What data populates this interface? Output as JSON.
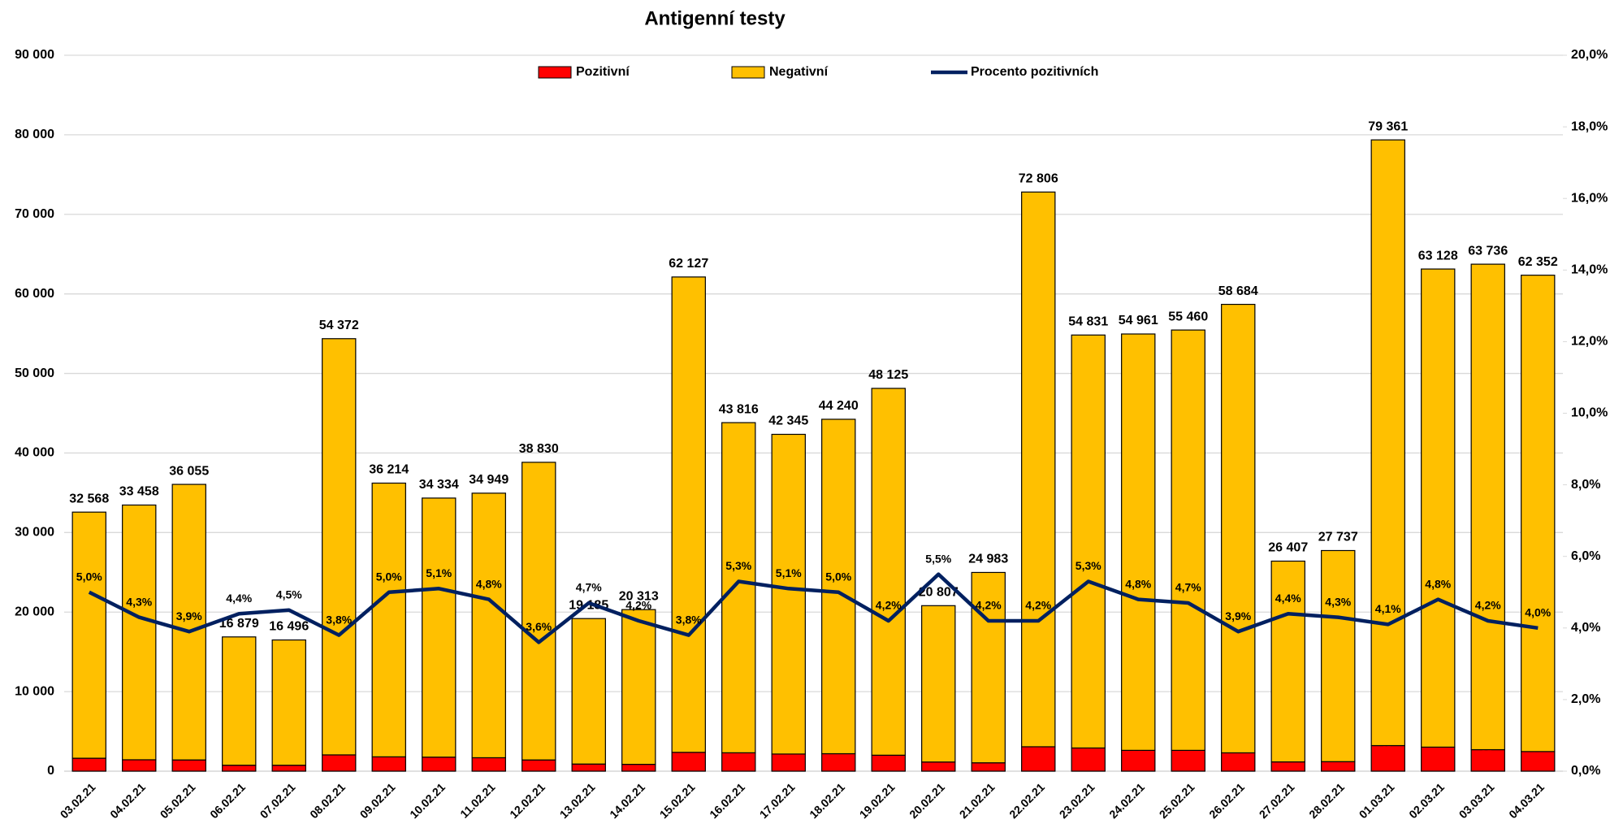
{
  "chart_data": {
    "type": "bar",
    "stacked": true,
    "title": "Antigenní testy",
    "categories": [
      "03.02.21",
      "04.02.21",
      "05.02.21",
      "06.02.21",
      "07.02.21",
      "08.02.21",
      "09.02.21",
      "10.02.21",
      "11.02.21",
      "12.02.21",
      "13.02.21",
      "14.02.21",
      "15.02.21",
      "16.02.21",
      "17.02.21",
      "18.02.21",
      "19.02.21",
      "20.02.21",
      "21.02.21",
      "22.02.21",
      "23.02.21",
      "24.02.21",
      "25.02.21",
      "26.02.21",
      "27.02.21",
      "28.02.21",
      "01.03.21",
      "02.03.21",
      "03.03.21",
      "04.03.21"
    ],
    "series": [
      {
        "name": "Pozitivní",
        "color": "#ff0000",
        "label_color": "#ff0000",
        "values": [
          1627,
          1434,
          1413,
          749,
          746,
          2048,
          1802,
          1764,
          1691,
          1412,
          898,
          860,
          2368,
          2311,
          2155,
          2197,
          2009,
          1153,
          1053,
          3070,
          2916,
          2619,
          2618,
          2305,
          1167,
          1196,
          3216,
          3023,
          2703,
          2465
        ],
        "value_labels": [
          "1 627",
          "1 434",
          "1 413",
          "749",
          "746",
          "2 048",
          "1 802",
          "1 764",
          "1 691",
          "1 412",
          "898",
          "860",
          "2 368",
          "2 311",
          "2 155",
          "2 197",
          "2 009",
          "1 153",
          "1 053",
          "3 070",
          "2 916",
          "2 619",
          "2 618",
          "2 305",
          "1 167",
          "1 196",
          "3 216",
          "3 023",
          "2 703",
          "2 465"
        ]
      },
      {
        "name": "Negativní",
        "color": "#ffc000",
        "values": [
          30941,
          32024,
          34642,
          16130,
          15750,
          52324,
          34412,
          32570,
          33258,
          37418,
          18287,
          19453,
          59759,
          41505,
          40190,
          42043,
          46116,
          19654,
          23930,
          69736,
          51915,
          52342,
          52842,
          56379,
          25240,
          26541,
          76145,
          60105,
          61033,
          59887
        ]
      },
      {
        "name": "Procento pozitivních",
        "type": "line",
        "axis": "y2",
        "color": "#002060",
        "values": [
          5.0,
          4.3,
          3.9,
          4.4,
          4.5,
          3.8,
          5.0,
          5.1,
          4.8,
          3.6,
          4.7,
          4.2,
          3.8,
          5.3,
          5.1,
          5.0,
          4.2,
          5.5,
          4.2,
          4.2,
          5.3,
          4.8,
          4.7,
          3.9,
          4.4,
          4.3,
          4.1,
          4.8,
          4.2,
          4.0
        ],
        "value_labels": [
          "5,0%",
          "4,3%",
          "3,9%",
          "4,4%",
          "4,5%",
          "3,8%",
          "5,0%",
          "5,1%",
          "4,8%",
          "3,6%",
          "4,7%",
          "4,2%",
          "3,8%",
          "5,3%",
          "5,1%",
          "5,0%",
          "4,2%",
          "5,5%",
          "4,2%",
          "4,2%",
          "5,3%",
          "4,8%",
          "4,7%",
          "3,9%",
          "4,4%",
          "4,3%",
          "4,1%",
          "4,8%",
          "4,2%",
          "4,0%"
        ]
      }
    ],
    "total_labels": [
      "32 568",
      "33 458",
      "36 055",
      "16 879",
      "16 496",
      "54 372",
      "36 214",
      "34 334",
      "34 949",
      "38 830",
      "19 185",
      "20 313",
      "62 127",
      "43 816",
      "42 345",
      "44 240",
      "48 125",
      "20 807",
      "24 983",
      "72 806",
      "54 831",
      "54 961",
      "55 460",
      "58 684",
      "26 407",
      "27 737",
      "79 361",
      "63 128",
      "63 736",
      "62 352"
    ],
    "ylim": [
      0,
      90000
    ],
    "yticks": [
      {
        "value": 0,
        "label": "0"
      },
      {
        "value": 10000,
        "label": "10 000"
      },
      {
        "value": 20000,
        "label": "20 000"
      },
      {
        "value": 30000,
        "label": "30 000"
      },
      {
        "value": 40000,
        "label": "40 000"
      },
      {
        "value": 50000,
        "label": "50 000"
      },
      {
        "value": 60000,
        "label": "60 000"
      },
      {
        "value": 70000,
        "label": "70 000"
      },
      {
        "value": 80000,
        "label": "80 000"
      },
      {
        "value": 90000,
        "label": "90 000"
      }
    ],
    "y2lim": [
      0,
      20
    ],
    "y2ticks": [
      {
        "value": 0,
        "label": "0,0%"
      },
      {
        "value": 2,
        "label": "2,0%"
      },
      {
        "value": 4,
        "label": "4,0%"
      },
      {
        "value": 6,
        "label": "6,0%"
      },
      {
        "value": 8,
        "label": "8,0%"
      },
      {
        "value": 10,
        "label": "10,0%"
      },
      {
        "value": 12,
        "label": "12,0%"
      },
      {
        "value": 14,
        "label": "14,0%"
      },
      {
        "value": 16,
        "label": "16,0%"
      },
      {
        "value": 18,
        "label": "18,0%"
      },
      {
        "value": 20,
        "label": "20,0%"
      }
    ],
    "grid": true,
    "legend": "top"
  }
}
